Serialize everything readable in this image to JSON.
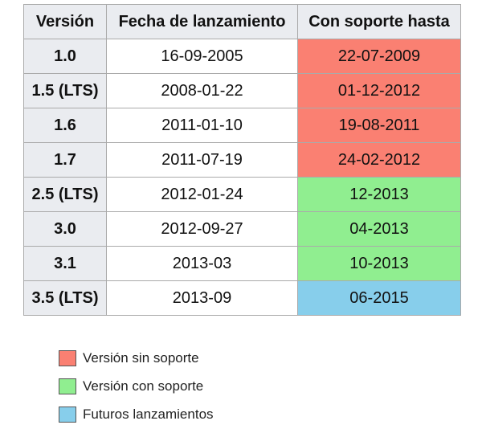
{
  "table": {
    "headers": {
      "version": "Versión",
      "release_date": "Fecha de lanzamiento",
      "support_until": "Con soporte hasta"
    },
    "rows": [
      {
        "version": "1.0",
        "release_date": "16-09-2005",
        "support_until": "22-07-2009",
        "status": "unsupported"
      },
      {
        "version": "1.5 (LTS)",
        "release_date": "2008-01-22",
        "support_until": "01-12-2012",
        "status": "unsupported"
      },
      {
        "version": "1.6",
        "release_date": "2011-01-10",
        "support_until": "19-08-2011",
        "status": "unsupported"
      },
      {
        "version": "1.7",
        "release_date": "2011-07-19",
        "support_until": "24-02-2012",
        "status": "unsupported"
      },
      {
        "version": "2.5 (LTS)",
        "release_date": "2012-01-24",
        "support_until": "12-2013",
        "status": "supported"
      },
      {
        "version": "3.0",
        "release_date": "2012-09-27",
        "support_until": "04-2013",
        "status": "supported"
      },
      {
        "version": "3.1",
        "release_date": "2013-03",
        "support_until": "10-2013",
        "status": "supported"
      },
      {
        "version": "3.5 (LTS)",
        "release_date": "2013-09",
        "support_until": "06-2015",
        "status": "future"
      }
    ]
  },
  "legend": [
    {
      "key": "unsupported",
      "label": "Versión sin soporte",
      "color": "#fa8072"
    },
    {
      "key": "supported",
      "label": "Versión con soporte",
      "color": "#90ee90"
    },
    {
      "key": "future",
      "label": "Futuros lanzamientos",
      "color": "#87ceeb"
    }
  ]
}
